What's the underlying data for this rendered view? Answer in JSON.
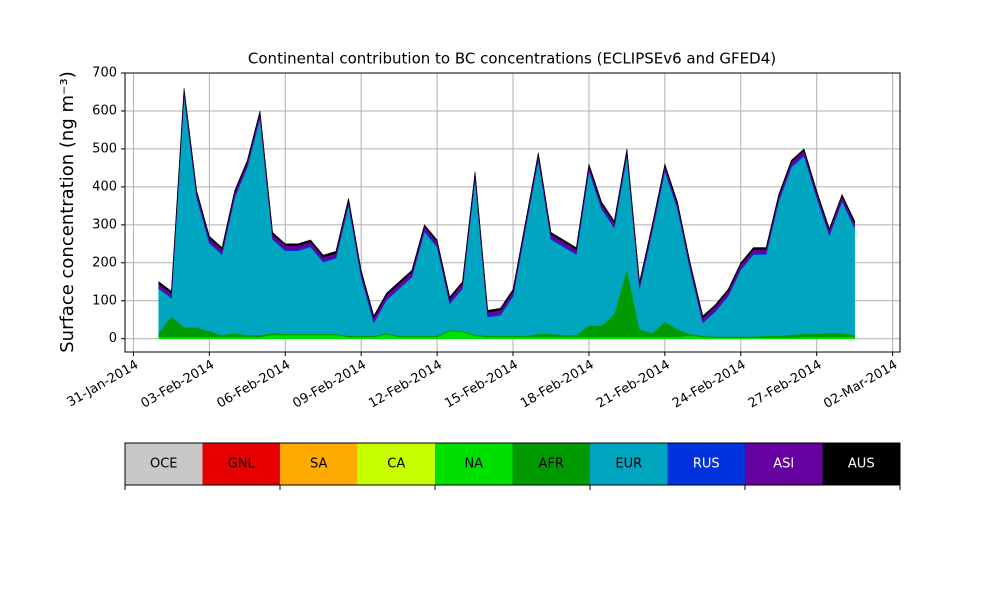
{
  "chart_data": {
    "type": "stacked_area",
    "title": "Continental contribution to BC concentrations (ECLIPSEv6 and GFED4)",
    "y_label": "Surface concentration (ng m⁻³)",
    "x": [
      "2014-02-01 00:00",
      "2014-02-01 12:00",
      "2014-02-02 00:00",
      "2014-02-02 12:00",
      "2014-02-03 00:00",
      "2014-02-03 12:00",
      "2014-02-04 00:00",
      "2014-02-04 12:00",
      "2014-02-05 00:00",
      "2014-02-05 12:00",
      "2014-02-06 00:00",
      "2014-02-06 12:00",
      "2014-02-07 00:00",
      "2014-02-07 12:00",
      "2014-02-08 00:00",
      "2014-02-08 12:00",
      "2014-02-09 00:00",
      "2014-02-09 12:00",
      "2014-02-10 00:00",
      "2014-02-10 12:00",
      "2014-02-11 00:00",
      "2014-02-11 12:00",
      "2014-02-12 00:00",
      "2014-02-12 12:00",
      "2014-02-13 00:00",
      "2014-02-13 12:00",
      "2014-02-14 00:00",
      "2014-02-14 12:00",
      "2014-02-15 00:00",
      "2014-02-15 12:00",
      "2014-02-16 00:00",
      "2014-02-16 12:00",
      "2014-02-17 00:00",
      "2014-02-17 12:00",
      "2014-02-18 00:00",
      "2014-02-18 12:00",
      "2014-02-19 00:00",
      "2014-02-19 12:00",
      "2014-02-20 00:00",
      "2014-02-20 12:00",
      "2014-02-21 00:00",
      "2014-02-21 12:00",
      "2014-02-22 00:00",
      "2014-02-22 12:00",
      "2014-02-23 00:00",
      "2014-02-23 12:00",
      "2014-02-24 00:00",
      "2014-02-24 12:00",
      "2014-02-25 00:00",
      "2014-02-25 12:00",
      "2014-02-26 00:00",
      "2014-02-26 12:00",
      "2014-02-27 00:00",
      "2014-02-27 12:00",
      "2014-02-28 00:00",
      "2014-02-28 12:00"
    ],
    "series": [
      {
        "name": "OCE",
        "color": "#c8c8c8",
        "values": [
          0,
          0,
          0,
          0,
          0,
          0,
          0,
          0,
          0,
          0,
          0,
          0,
          0,
          0,
          0,
          0,
          0,
          0,
          0,
          0,
          0,
          0,
          0,
          0,
          0,
          0,
          0,
          0,
          0,
          0,
          0,
          0,
          0,
          0,
          0,
          0,
          0,
          0,
          0,
          0,
          0,
          0,
          0,
          0,
          0,
          0,
          0,
          0,
          0,
          0,
          0,
          0,
          0,
          0,
          0,
          0
        ]
      },
      {
        "name": "GNL",
        "color": "#e60000",
        "values": [
          0,
          0,
          0,
          0,
          0,
          0,
          0,
          0,
          0,
          0,
          0,
          0,
          0,
          0,
          0,
          0,
          0,
          0,
          0,
          0,
          0,
          0,
          0,
          0,
          0,
          0,
          0,
          0,
          0,
          0,
          0,
          0,
          0,
          0,
          0,
          0,
          0,
          0,
          0,
          0,
          0,
          0,
          0,
          0,
          0,
          0,
          0,
          0,
          0,
          0,
          0,
          0,
          0,
          0,
          0,
          0
        ]
      },
      {
        "name": "SA",
        "color": "#ffaa00",
        "values": [
          0,
          0,
          0,
          0,
          0,
          0,
          0,
          0,
          0,
          0,
          0,
          0,
          0,
          0,
          0,
          0,
          0,
          0,
          0,
          0,
          0,
          0,
          0,
          0,
          0,
          0,
          0,
          0,
          0,
          0,
          0,
          0,
          0,
          0,
          0,
          0,
          0,
          0,
          0,
          0,
          0,
          0,
          0,
          0,
          0,
          0,
          0,
          0,
          0,
          0,
          0,
          0,
          0,
          0,
          0,
          0
        ]
      },
      {
        "name": "CA",
        "color": "#c8ff00",
        "values": [
          0,
          0,
          0,
          0,
          0,
          0,
          0,
          0,
          0,
          0,
          0,
          0,
          0,
          0,
          0,
          0,
          0,
          0,
          0,
          0,
          0,
          0,
          0,
          0,
          0,
          0,
          0,
          0,
          0,
          0,
          0,
          0,
          0,
          0,
          0,
          0,
          0,
          0,
          0,
          0,
          0,
          0,
          0,
          0,
          0,
          0,
          0,
          0,
          0,
          0,
          0,
          0,
          0,
          0,
          0,
          0
        ]
      },
      {
        "name": "NA",
        "color": "#00e000",
        "values": [
          5,
          5,
          5,
          5,
          5,
          5,
          5,
          5,
          5,
          10,
          10,
          10,
          10,
          10,
          10,
          5,
          5,
          5,
          12,
          5,
          5,
          5,
          5,
          20,
          18,
          8,
          5,
          5,
          5,
          5,
          5,
          5,
          5,
          5,
          5,
          5,
          5,
          5,
          5,
          5,
          5,
          5,
          8,
          5,
          3,
          3,
          3,
          3,
          3,
          3,
          3,
          5,
          5,
          5,
          5,
          5
        ]
      },
      {
        "name": "AFR",
        "color": "#009a00",
        "values": [
          10,
          55,
          25,
          25,
          15,
          5,
          10,
          5,
          5,
          5,
          3,
          3,
          3,
          3,
          3,
          3,
          3,
          3,
          3,
          3,
          3,
          3,
          3,
          3,
          3,
          3,
          3,
          3,
          3,
          3,
          8,
          8,
          5,
          5,
          30,
          30,
          60,
          180,
          20,
          10,
          40,
          20,
          5,
          3,
          3,
          3,
          3,
          3,
          5,
          5,
          8,
          8,
          8,
          10,
          10,
          5
        ]
      },
      {
        "name": "EUR",
        "color": "#00a5bf",
        "values": [
          117,
          47,
          612,
          342,
          232,
          212,
          357,
          442,
          572,
          247,
          219,
          219,
          229,
          189,
          199,
          344,
          154,
          34,
          87,
          124,
          154,
          274,
          234,
          69,
          111,
          411,
          49,
          54,
          104,
          284,
          459,
          249,
          232,
          212,
          407,
          307,
          227,
          297,
          107,
          267,
          397,
          317,
          169,
          34,
          66,
          106,
          176,
          216,
          214,
          354,
          441,
          469,
          359,
          257,
          347,
          282
        ]
      },
      {
        "name": "RUS",
        "color": "#0033dd",
        "values": [
          3,
          3,
          3,
          3,
          3,
          3,
          3,
          3,
          3,
          3,
          3,
          3,
          3,
          3,
          3,
          3,
          3,
          3,
          3,
          3,
          3,
          3,
          3,
          3,
          3,
          3,
          3,
          3,
          3,
          3,
          3,
          3,
          3,
          3,
          3,
          3,
          3,
          3,
          3,
          3,
          3,
          3,
          3,
          3,
          3,
          3,
          3,
          3,
          3,
          3,
          3,
          3,
          3,
          3,
          3,
          3
        ]
      },
      {
        "name": "ASI",
        "color": "#6600a0",
        "values": [
          10,
          10,
          10,
          10,
          10,
          10,
          10,
          10,
          10,
          10,
          10,
          10,
          10,
          10,
          10,
          10,
          10,
          10,
          10,
          10,
          10,
          10,
          10,
          10,
          10,
          10,
          10,
          10,
          10,
          10,
          10,
          10,
          10,
          10,
          10,
          10,
          10,
          10,
          10,
          10,
          10,
          10,
          10,
          10,
          10,
          10,
          10,
          10,
          10,
          10,
          10,
          10,
          10,
          10,
          10,
          10
        ]
      },
      {
        "name": "AUS",
        "color": "#000000",
        "values": [
          5,
          5,
          5,
          5,
          5,
          5,
          5,
          5,
          5,
          5,
          5,
          5,
          5,
          5,
          5,
          5,
          5,
          5,
          5,
          5,
          5,
          5,
          5,
          5,
          5,
          5,
          5,
          5,
          5,
          5,
          5,
          5,
          5,
          5,
          5,
          5,
          5,
          5,
          5,
          5,
          5,
          5,
          5,
          5,
          5,
          5,
          5,
          5,
          5,
          5,
          5,
          5,
          5,
          5,
          5,
          5
        ]
      }
    ],
    "xlim": [
      "2014-01-30 16:00",
      "2014-03-02 07:00"
    ],
    "xticks": [
      {
        "value": "2014-01-31 00:00",
        "label": "31-Jan-2014"
      },
      {
        "value": "2014-02-03 00:00",
        "label": "03-Feb-2014"
      },
      {
        "value": "2014-02-06 00:00",
        "label": "06-Feb-2014"
      },
      {
        "value": "2014-02-09 00:00",
        "label": "09-Feb-2014"
      },
      {
        "value": "2014-02-12 00:00",
        "label": "12-Feb-2014"
      },
      {
        "value": "2014-02-15 00:00",
        "label": "15-Feb-2014"
      },
      {
        "value": "2014-02-18 00:00",
        "label": "18-Feb-2014"
      },
      {
        "value": "2014-02-21 00:00",
        "label": "21-Feb-2014"
      },
      {
        "value": "2014-02-24 00:00",
        "label": "24-Feb-2014"
      },
      {
        "value": "2014-02-27 00:00",
        "label": "27-Feb-2014"
      },
      {
        "value": "2014-03-02 00:00",
        "label": "02-Mar-2014"
      }
    ],
    "ylim": [
      -35,
      700
    ],
    "yticks": [
      0,
      100,
      200,
      300,
      400,
      500,
      600,
      700
    ],
    "grid": true
  }
}
